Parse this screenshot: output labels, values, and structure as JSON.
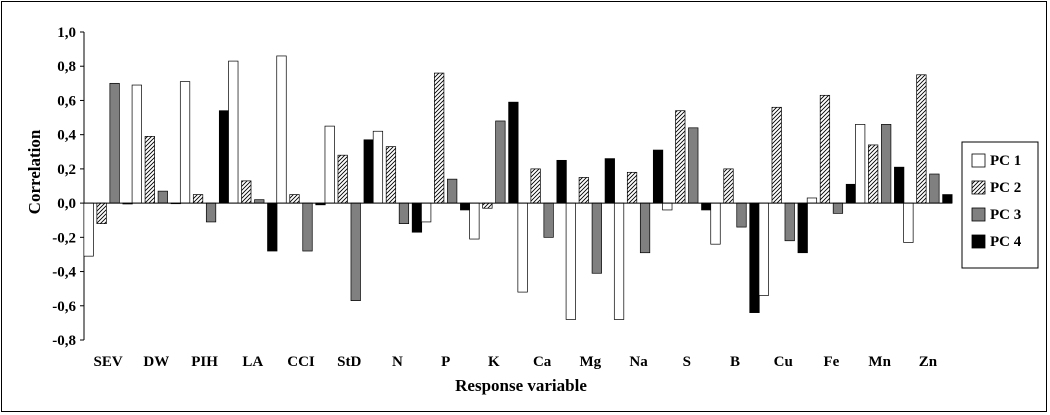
{
  "chart_data": {
    "type": "bar",
    "xlabel": "Response variable",
    "ylabel": "Correlation",
    "ylim": [
      -0.8,
      1.0
    ],
    "ytick_step": 0.2,
    "yticks": [
      "-0,8",
      "-0,6",
      "-0,4",
      "-0,2",
      "0,0",
      "0,2",
      "0,4",
      "0,6",
      "0,8",
      "1,0"
    ],
    "categories": [
      "SEV",
      "DW",
      "PIH",
      "LA",
      "CCI",
      "StD",
      "N",
      "P",
      "K",
      "Ca",
      "Mg",
      "Na",
      "S",
      "B",
      "Cu",
      "Fe",
      "Mn",
      "Zn"
    ],
    "series": [
      {
        "name": "PC 1",
        "style": "white",
        "values": [
          -0.31,
          0.69,
          0.71,
          0.83,
          0.86,
          0.45,
          0.42,
          -0.11,
          -0.21,
          -0.52,
          -0.68,
          -0.68,
          -0.04,
          -0.24,
          -0.54,
          0.03,
          0.46,
          -0.23
        ]
      },
      {
        "name": "PC 2",
        "style": "hatch",
        "values": [
          -0.12,
          0.39,
          0.05,
          0.13,
          0.05,
          0.28,
          0.33,
          0.76,
          -0.03,
          0.2,
          0.15,
          0.18,
          0.54,
          0.2,
          0.56,
          0.63,
          0.34,
          0.75
        ]
      },
      {
        "name": "PC 3",
        "style": "gray",
        "values": [
          0.7,
          0.07,
          -0.11,
          0.02,
          -0.28,
          -0.57,
          -0.12,
          0.14,
          0.48,
          -0.2,
          -0.41,
          -0.29,
          0.44,
          -0.14,
          -0.22,
          -0.06,
          0.46,
          0.17
        ]
      },
      {
        "name": "PC 4",
        "style": "black",
        "values": [
          -0.005,
          0.0,
          0.54,
          -0.28,
          -0.01,
          0.37,
          -0.17,
          -0.04,
          0.59,
          0.25,
          0.26,
          0.31,
          -0.04,
          -0.64,
          -0.29,
          0.11,
          0.21,
          0.05
        ]
      }
    ],
    "legend": "right",
    "grid": false
  }
}
